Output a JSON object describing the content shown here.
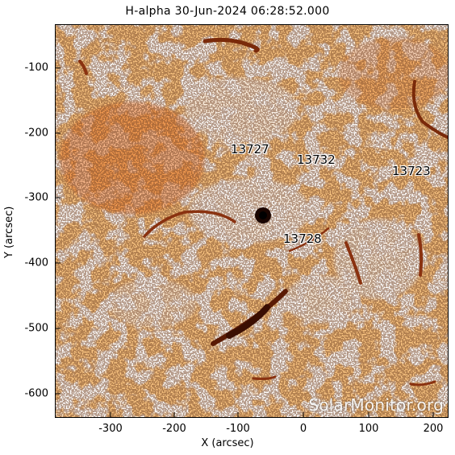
{
  "title": "H-alpha 30-Jun-2024 06:28:52.000",
  "axes": {
    "xlabel": "X (arcsec)",
    "ylabel": "Y (arcsec)",
    "xticks": [
      "-300",
      "-200",
      "-100",
      "0",
      "100",
      "200"
    ],
    "yticks": [
      "-100",
      "-200",
      "-300",
      "-400",
      "-500",
      "-600"
    ]
  },
  "regions": [
    {
      "id": "region-13727",
      "label": "13727"
    },
    {
      "id": "region-13732",
      "label": "13732"
    },
    {
      "id": "region-13723",
      "label": "13723"
    },
    {
      "id": "region-13728",
      "label": "13728"
    }
  ],
  "watermark": "SolarMonitor.org",
  "colors": {
    "chromosphere": "#f28a3a",
    "chromosphere_light": "#f7a860",
    "filament": "#7a2a0a",
    "filament_dark": "#3a0e02",
    "plage": "#ffffff",
    "background": "#ffffff"
  }
}
